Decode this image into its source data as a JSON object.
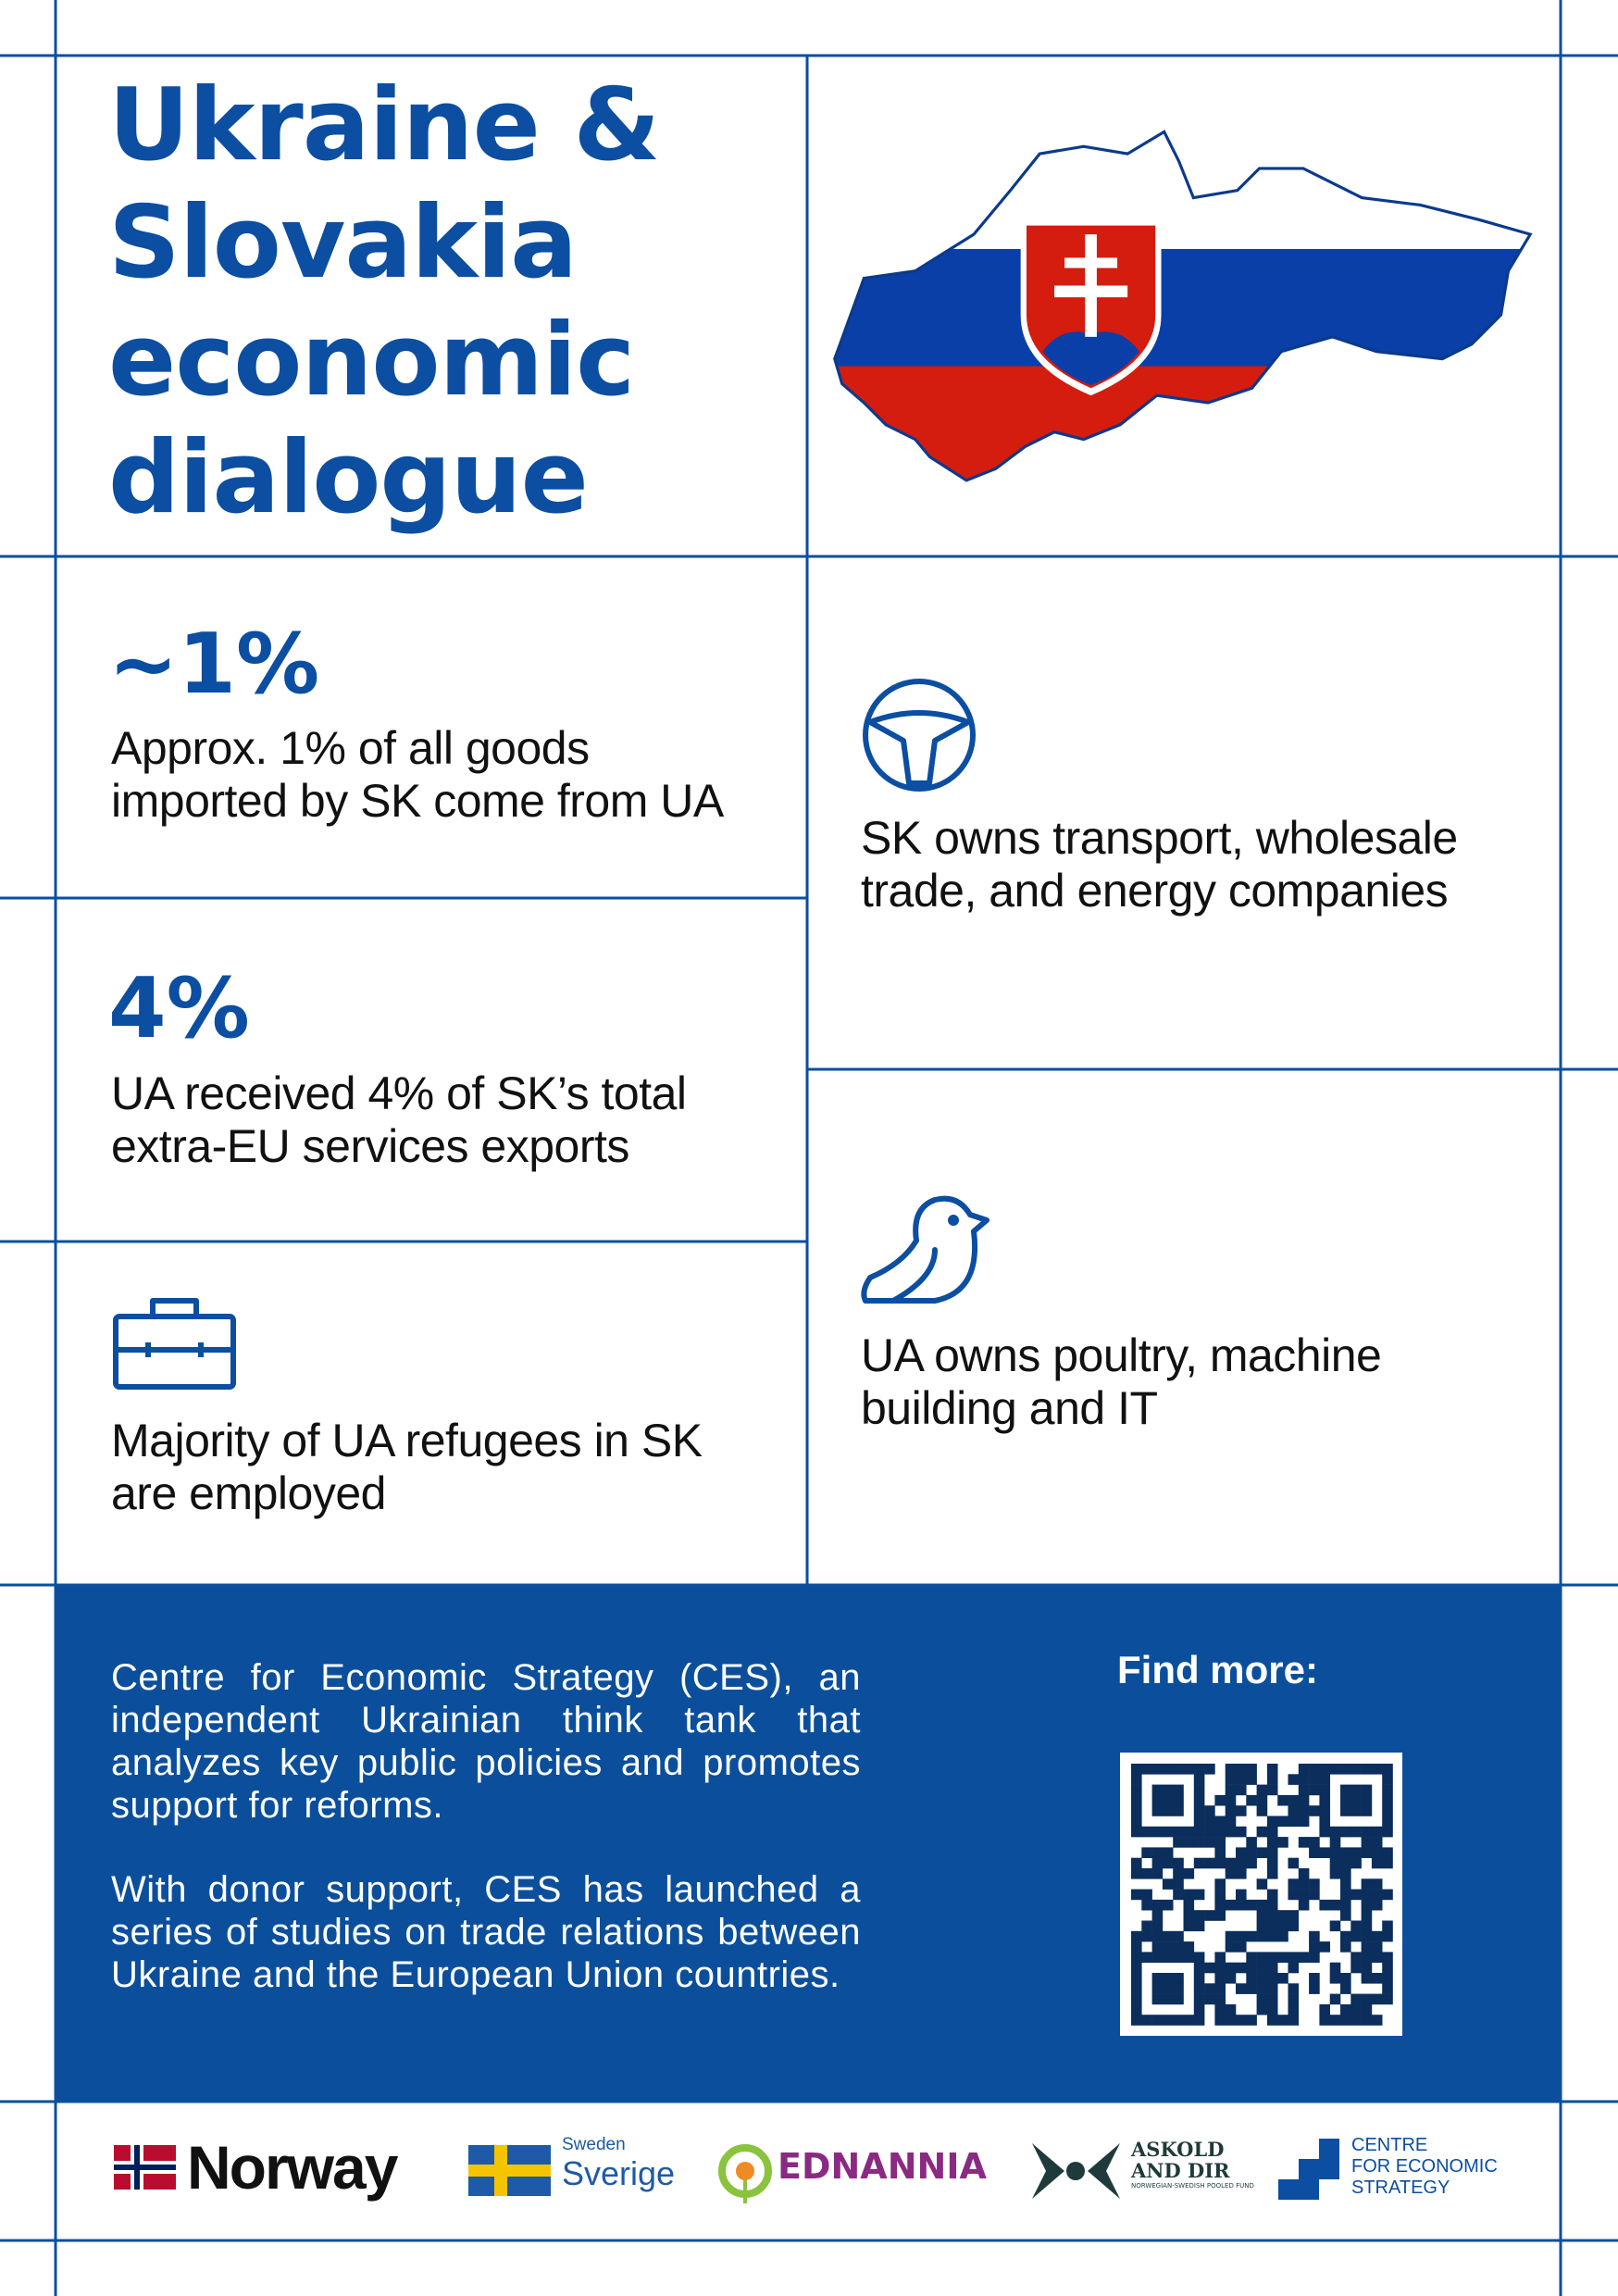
{
  "header": {
    "title_lines": [
      "Ukraine &",
      "Slovakia",
      "economic",
      "dialogue"
    ]
  },
  "facts": [
    {
      "value": "~1%",
      "lines": [
        "Approx. 1% of all goods",
        "imported by SK come from UA"
      ]
    },
    {
      "value": "4%",
      "lines": [
        "UA received 4% of SK’s total",
        "extra-EU services exports"
      ]
    },
    {
      "lines": [
        "Majority of UA refugees in SK",
        "are employed"
      ]
    },
    {
      "lines": [
        "SK owns transport, wholesale",
        "trade, and energy companies"
      ]
    },
    {
      "lines": [
        "UA owns poultry, machine",
        "building and IT"
      ]
    }
  ],
  "about": {
    "paragraphs": [
      "Centre for Economic Strategy (CES), an independent Ukrainian think tank that analyzes key public policies and promotes support for reforms.",
      "With donor support, CES has launched a series of studies on trade relations between Ukraine and the European Union countries."
    ],
    "find_more": "Find more:"
  },
  "logos": {
    "norway": "Norway",
    "sweden": [
      "Sweden",
      "Sverige"
    ],
    "ednannia": "EDNANNIA",
    "askold": [
      "ASKOLD",
      "AND DIR",
      "NORWEGIAN-SWEDISH POOLED FUND"
    ],
    "ces": [
      "CENTRE",
      "FOR ECONOMIC",
      "STRATEGY"
    ]
  }
}
